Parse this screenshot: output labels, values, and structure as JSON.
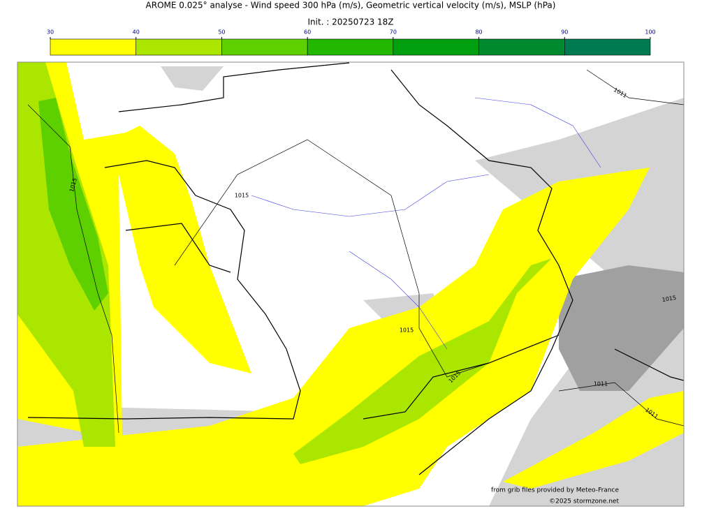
{
  "header": {
    "title": "AROME 0.025° analyse - Wind speed 300 hPa (m/s), Geometric vertical velocity (m/s), MSLP (hPa)",
    "subtitle": "Init. : 20250723 18Z"
  },
  "colorbar": {
    "ticks": [
      30,
      40,
      50,
      60,
      70,
      80,
      90,
      100
    ],
    "colors": [
      "#ffff00",
      "#aae600",
      "#5ed000",
      "#22b800",
      "#00a010",
      "#008a30",
      "#007a50"
    ]
  },
  "map": {
    "isobar_labels": [
      "1015",
      "1015",
      "1015",
      "1015",
      "1015",
      "1011",
      "1011",
      "1011"
    ],
    "credits": [
      "from grib files provided by Meteo-France",
      "©2025 stormzone.net"
    ]
  }
}
